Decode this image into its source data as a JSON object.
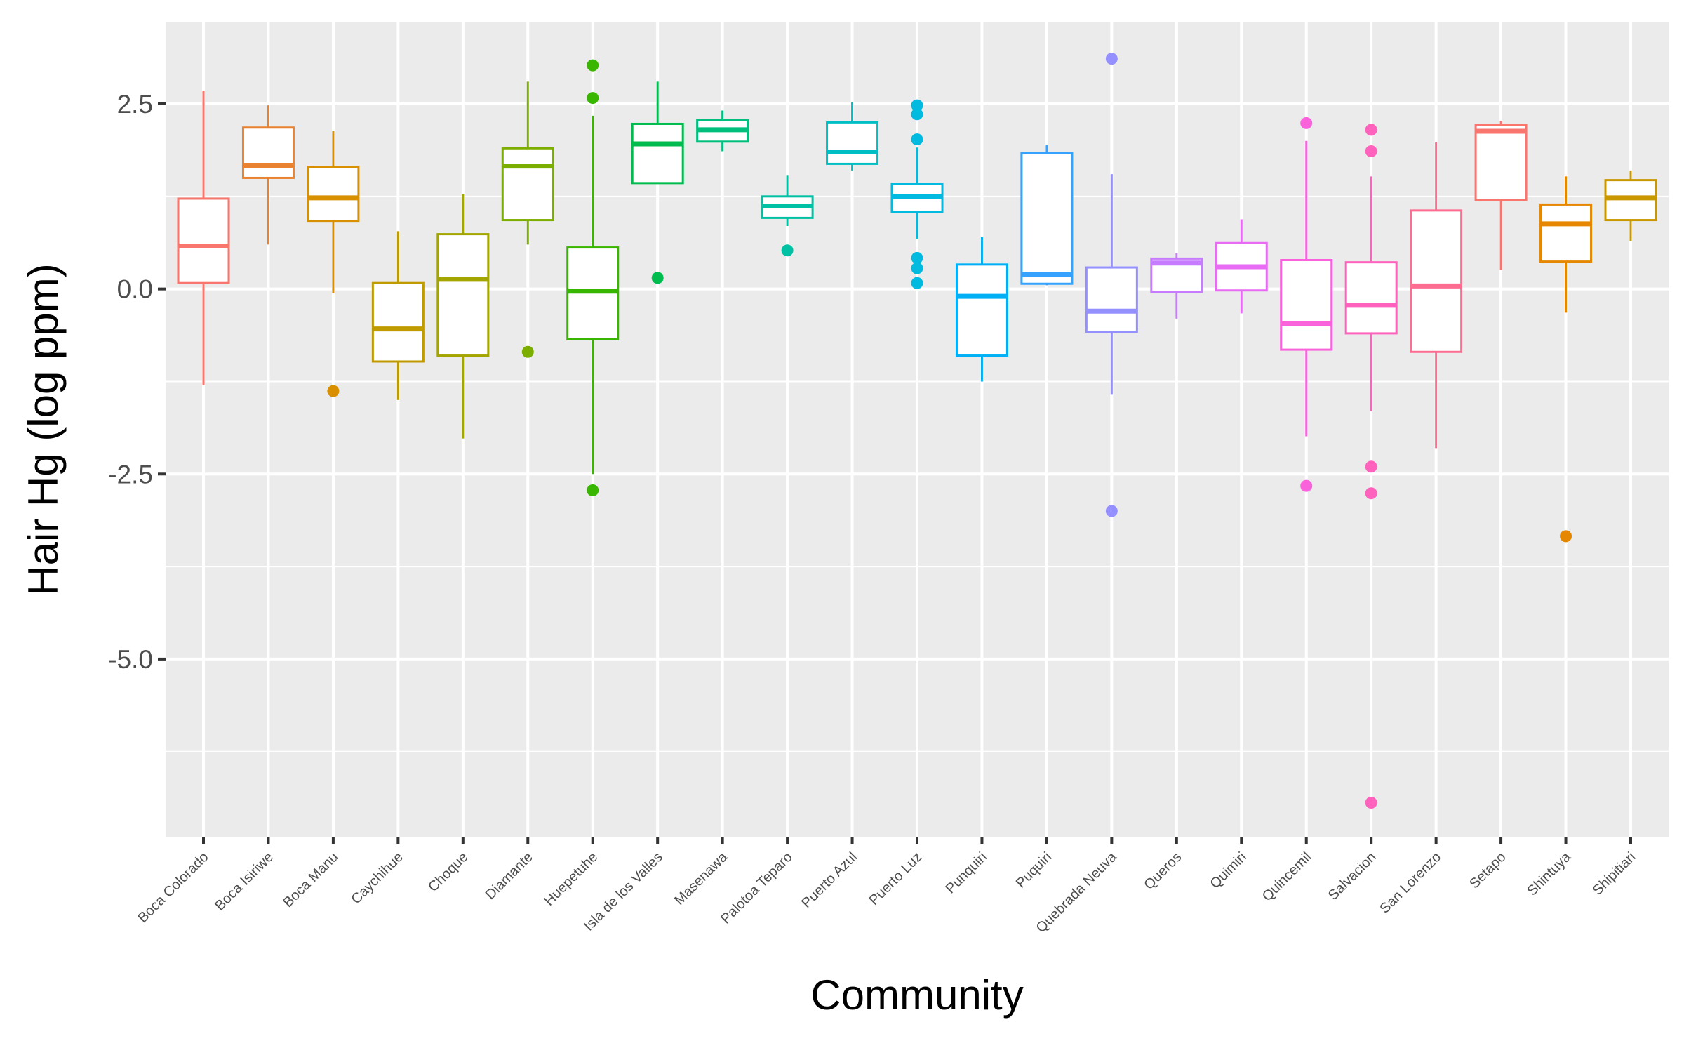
{
  "chart_data": {
    "type": "box",
    "xlabel": "Community",
    "ylabel": "Hair Hg (log ppm)",
    "ylim": [
      -7.4,
      3.6
    ],
    "yticks": [
      -5.0,
      -2.5,
      0.0,
      2.5
    ],
    "ytick_labels": [
      "-5.0",
      "-2.5",
      "0.0",
      "2.5"
    ],
    "grid": true,
    "legend": "none",
    "categories": [
      "Boca Colorado",
      "Boca Isiriwe",
      "Boca Manu",
      "Caychihue",
      "Choque",
      "Diamante",
      "Huepetuhe",
      "Isla de los Valles",
      "Masenawa",
      "Palotoa Teparo",
      "Puerto Azul",
      "Puerto Luz",
      "Punquiri",
      "Puquiri",
      "Quebrada Neuva",
      "Queros",
      "Quimiri",
      "Quincemil",
      "Salvacion",
      "San Lorenzo",
      "Setapo",
      "Shintuya",
      "Shipitiari"
    ],
    "series": [
      {
        "color": "#F8766D",
        "whisker_low": -1.3,
        "q1": 0.08,
        "median": 0.58,
        "q3": 1.22,
        "whisker_high": 2.68,
        "outliers": []
      },
      {
        "color": "#EA8331",
        "whisker_low": 0.6,
        "q1": 1.5,
        "median": 1.67,
        "q3": 2.18,
        "whisker_high": 2.48,
        "outliers": []
      },
      {
        "color": "#D89000",
        "whisker_low": -0.06,
        "q1": 0.92,
        "median": 1.23,
        "q3": 1.65,
        "whisker_high": 2.13,
        "outliers": [
          -1.38
        ]
      },
      {
        "color": "#C09B00",
        "whisker_low": -1.5,
        "q1": -0.98,
        "median": -0.54,
        "q3": 0.08,
        "whisker_high": 0.78,
        "outliers": []
      },
      {
        "color": "#A3A500",
        "whisker_low": -2.02,
        "q1": -0.9,
        "median": 0.13,
        "q3": 0.74,
        "whisker_high": 1.28,
        "outliers": []
      },
      {
        "color": "#7CAE00",
        "whisker_low": 0.6,
        "q1": 0.93,
        "median": 1.66,
        "q3": 1.9,
        "whisker_high": 2.8,
        "outliers": [
          -0.85
        ]
      },
      {
        "color": "#39B600",
        "whisker_low": -2.5,
        "q1": -0.68,
        "median": -0.03,
        "q3": 0.56,
        "whisker_high": 2.34,
        "outliers": [
          3.02,
          2.58,
          -2.72
        ]
      },
      {
        "color": "#00BB4E",
        "whisker_low": 1.43,
        "q1": 1.43,
        "median": 1.96,
        "q3": 2.23,
        "whisker_high": 2.8,
        "outliers": [
          0.15
        ]
      },
      {
        "color": "#00BF7D",
        "whisker_low": 1.86,
        "q1": 1.99,
        "median": 2.15,
        "q3": 2.28,
        "whisker_high": 2.41,
        "outliers": []
      },
      {
        "color": "#00C1A3",
        "whisker_low": 0.85,
        "q1": 0.96,
        "median": 1.12,
        "q3": 1.25,
        "whisker_high": 1.53,
        "outliers": [
          0.52
        ]
      },
      {
        "color": "#00BFC4",
        "whisker_low": 1.6,
        "q1": 1.69,
        "median": 1.85,
        "q3": 2.25,
        "whisker_high": 2.52,
        "outliers": []
      },
      {
        "color": "#00BAE0",
        "whisker_low": 0.68,
        "q1": 1.04,
        "median": 1.25,
        "q3": 1.42,
        "whisker_high": 1.91,
        "outliers": [
          2.48,
          2.36,
          2.02,
          0.42,
          0.28,
          0.08
        ]
      },
      {
        "color": "#00B0F6",
        "whisker_low": -1.25,
        "q1": -0.9,
        "median": -0.1,
        "q3": 0.33,
        "whisker_high": 0.7,
        "outliers": []
      },
      {
        "color": "#35A2FF",
        "whisker_low": 0.05,
        "q1": 0.07,
        "median": 0.2,
        "q3": 1.84,
        "whisker_high": 1.94,
        "outliers": []
      },
      {
        "color": "#9590FF",
        "whisker_low": -1.43,
        "q1": -0.58,
        "median": -0.3,
        "q3": 0.29,
        "whisker_high": 1.55,
        "outliers": [
          3.11,
          -3.0
        ]
      },
      {
        "color": "#C77CFF",
        "whisker_low": -0.4,
        "q1": -0.04,
        "median": 0.35,
        "q3": 0.41,
        "whisker_high": 0.48,
        "outliers": []
      },
      {
        "color": "#E76BF3",
        "whisker_low": -0.33,
        "q1": -0.02,
        "median": 0.3,
        "q3": 0.62,
        "whisker_high": 0.94,
        "outliers": []
      },
      {
        "color": "#FA62DB",
        "whisker_low": -1.99,
        "q1": -0.82,
        "median": -0.47,
        "q3": 0.39,
        "whisker_high": 2.0,
        "outliers": [
          2.24,
          -2.66
        ]
      },
      {
        "color": "#FF62BC",
        "whisker_low": -1.65,
        "q1": -0.6,
        "median": -0.22,
        "q3": 0.36,
        "whisker_high": 1.52,
        "outliers": [
          2.15,
          1.86,
          -2.4,
          -2.76,
          -6.94
        ]
      },
      {
        "color": "#FF6C91",
        "whisker_low": -2.15,
        "q1": -0.85,
        "median": 0.04,
        "q3": 1.06,
        "whisker_high": 1.98,
        "outliers": []
      },
      {
        "color": "#F8766D",
        "whisker_low": 0.26,
        "q1": 1.2,
        "median": 2.13,
        "q3": 2.22,
        "whisker_high": 2.27,
        "outliers": []
      },
      {
        "color": "#E58700",
        "whisker_low": -0.32,
        "q1": 0.37,
        "median": 0.88,
        "q3": 1.14,
        "whisker_high": 1.52,
        "outliers": [
          -3.34
        ]
      },
      {
        "color": "#C99800",
        "whisker_low": 0.65,
        "q1": 0.93,
        "median": 1.23,
        "q3": 1.47,
        "whisker_high": 1.6,
        "outliers": []
      }
    ]
  }
}
